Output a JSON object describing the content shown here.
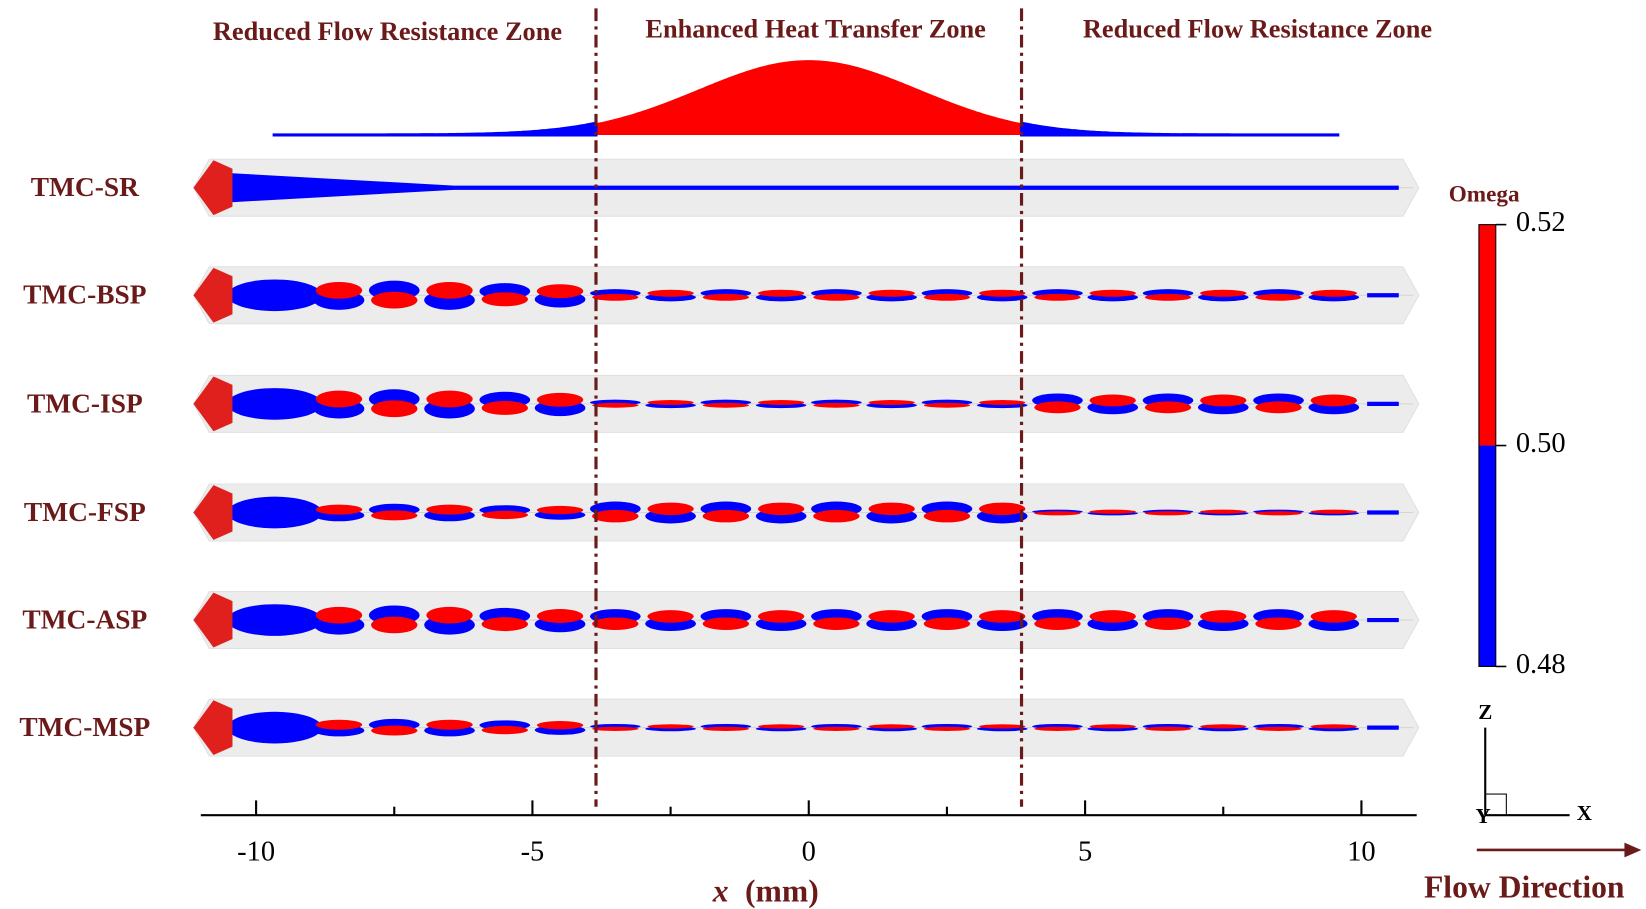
{
  "zones": {
    "left": "Reduced Flow Resistance Zone",
    "middle": "Enhanced Heat Transfer Zone",
    "right": "Reduced Flow Resistance Zone",
    "boundaries": [
      -3.85,
      3.85
    ]
  },
  "rows": [
    "TMC-SR",
    "TMC-BSP",
    "TMC-ISP",
    "TMC-FSP",
    "TMC-ASP",
    "TMC-MSP"
  ],
  "axis": {
    "variable": "x",
    "unit": "(mm)",
    "xlim": [
      -11,
      11
    ],
    "xticks": [
      -10,
      -5,
      0,
      5,
      10
    ],
    "minor_xticks": [
      -7.5,
      -2.5,
      2.5,
      7.5
    ]
  },
  "colorbar": {
    "title": "Omega",
    "lim": [
      0.48,
      0.52
    ],
    "ticks": [
      0.52,
      0.5,
      0.48
    ],
    "split": 0.5,
    "high_color": "#ff0000",
    "low_color": "#0000ff"
  },
  "triad": {
    "z": "Z",
    "y": "Y",
    "x": "X"
  },
  "flow_label": "Flow Direction"
}
